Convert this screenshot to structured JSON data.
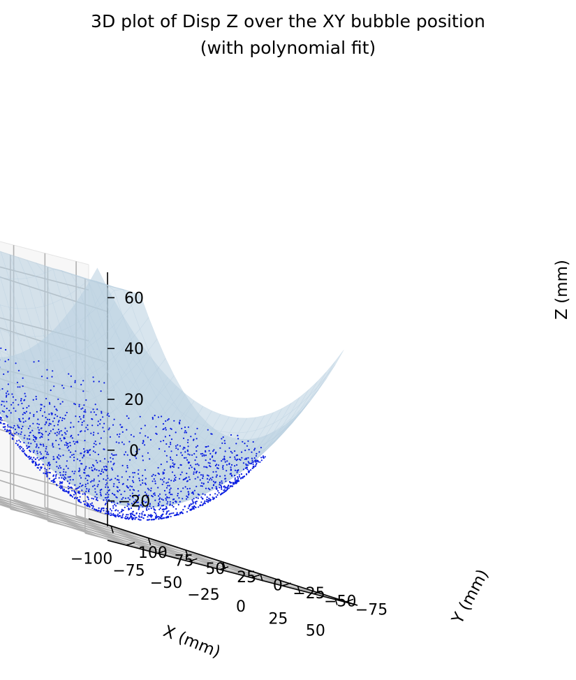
{
  "chart_data": {
    "type": "surface3d",
    "title_line1": "3D plot of Disp Z over the XY bubble position",
    "title_line2": "(with polynomial fit)",
    "xlabel": "X (mm)",
    "ylabel": "Y (mm)",
    "zlabel": "Z (mm)",
    "xlim": [
      -115,
      65
    ],
    "ylim": [
      -85,
      115
    ],
    "zlim": [
      -30,
      70
    ],
    "xticks": [
      -100,
      -75,
      -50,
      -25,
      0,
      25,
      50
    ],
    "xtick_labels": [
      "−100",
      "−75",
      "−50",
      "−25",
      "0",
      "25",
      "50"
    ],
    "yticks": [
      -75,
      -50,
      -25,
      0,
      25,
      50,
      75,
      100
    ],
    "ytick_labels": [
      "−75",
      "−50",
      "−25",
      "0",
      "25",
      "50",
      "75",
      "100"
    ],
    "zticks": [
      -20,
      0,
      20,
      40,
      60
    ],
    "ztick_labels": [
      "−20",
      "0",
      "20",
      "40",
      "60"
    ],
    "grid": true,
    "series": [
      {
        "kind": "surface",
        "color": "#b8cfe0",
        "opacity": 0.75,
        "fit": {
          "center_x": -22,
          "center_y": 10,
          "z_min": -18,
          "samples": [
            {
              "x": -22,
              "y": 10,
              "z": -18
            },
            {
              "x": -100,
              "y": 10,
              "z": 19
            },
            {
              "x": 60,
              "y": 10,
              "z": 19
            },
            {
              "x": -22,
              "y": -80,
              "z": 28
            },
            {
              "x": -22,
              "y": 110,
              "z": 71
            }
          ]
        }
      },
      {
        "kind": "scatter",
        "color": "#0a1ee0",
        "x_range": [
          -95,
          55
        ],
        "y_range": [
          -75,
          100
        ]
      }
    ]
  }
}
